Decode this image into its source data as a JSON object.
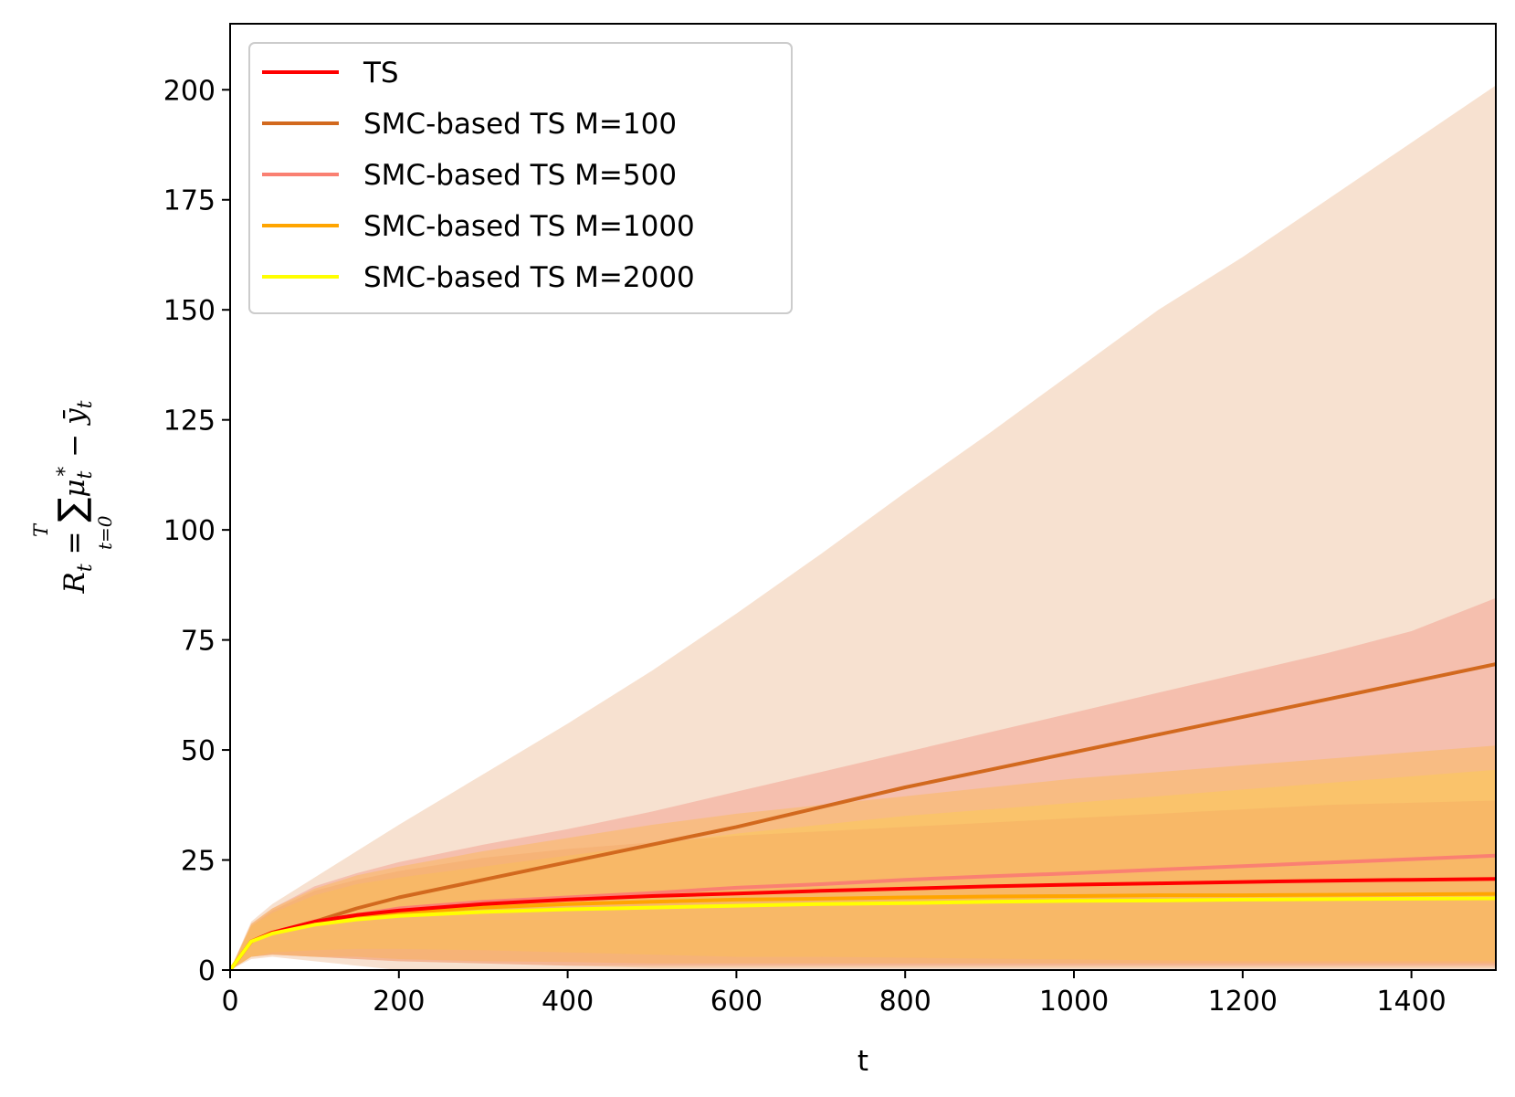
{
  "chart_data": {
    "type": "line",
    "title": "",
    "xlabel": "t",
    "ylabel": "R_t = Σ_{t=0}^{T} μ_t* − ȳ_t",
    "ylabel_parts": {
      "R": "R",
      "sub_t": "t",
      "eq": " = ",
      "sigma": "∑",
      "sup_T": "T",
      "sub_t0": "t=0",
      "mu": "μ",
      "star": "*",
      "minus": " − ",
      "y": "ȳ"
    },
    "xlim": [
      0,
      1500
    ],
    "ylim": [
      0,
      215
    ],
    "xticks": [
      0,
      200,
      400,
      600,
      800,
      1000,
      1200,
      1400
    ],
    "yticks": [
      0,
      25,
      50,
      75,
      100,
      125,
      150,
      175,
      200
    ],
    "grid": false,
    "legend_position": "top-left",
    "x": [
      0,
      25,
      50,
      100,
      150,
      200,
      300,
      400,
      500,
      600,
      700,
      800,
      900,
      1000,
      1100,
      1200,
      1300,
      1400,
      1500
    ],
    "series": [
      {
        "name": "TS",
        "color": "#ff0000",
        "values": [
          0,
          6.5,
          8.5,
          11,
          12.5,
          13.5,
          15,
          16,
          16.8,
          17.4,
          18,
          18.5,
          19,
          19.4,
          19.7,
          20,
          20.3,
          20.5,
          20.7
        ],
        "band_color": "#f4a460",
        "band_lower": [
          0,
          3,
          3.5,
          3,
          2.5,
          2,
          1.5,
          1,
          0.5,
          0.5,
          0.5,
          0.5,
          0.5,
          0.5,
          0.5,
          0.5,
          0.5,
          0.5,
          0.5
        ],
        "band_upper": [
          0,
          10,
          13.5,
          18,
          20.5,
          22.5,
          25.5,
          27.5,
          29,
          30.5,
          31.5,
          32.5,
          33.5,
          34.5,
          35.5,
          36.5,
          37.5,
          38,
          38.5
        ]
      },
      {
        "name": "SMC-based TS M=100",
        "color": "#d2691e",
        "values": [
          0,
          6.5,
          8.5,
          11,
          14,
          16.5,
          20.5,
          24.5,
          28.5,
          32.5,
          37,
          41.5,
          45.5,
          49.5,
          53.5,
          57.5,
          61.5,
          65.5,
          69.5
        ],
        "band_color": "#e8a878",
        "band_lower": [
          0,
          2.5,
          3,
          2,
          1,
          0,
          0,
          0,
          0,
          0,
          0,
          0,
          0,
          0,
          0,
          0,
          0,
          0,
          0
        ],
        "band_upper": [
          0,
          11,
          15,
          21,
          27,
          33,
          44.5,
          56,
          68,
          81,
          94.5,
          108.5,
          122,
          136,
          150,
          162,
          175,
          188,
          201
        ]
      },
      {
        "name": "SMC-based TS M=500",
        "color": "#fa8072",
        "values": [
          0,
          6.5,
          8.5,
          11,
          12.5,
          14,
          15.5,
          16.5,
          17.5,
          18.7,
          19.5,
          20.5,
          21.3,
          22,
          22.8,
          23.6,
          24.4,
          25.2,
          26
        ],
        "band_color": "#f08070",
        "band_lower": [
          0,
          3,
          3.5,
          3,
          2.5,
          2,
          1.5,
          1,
          1,
          1,
          1,
          1,
          1,
          1,
          1,
          1,
          1,
          1,
          1
        ],
        "band_upper": [
          0,
          10.5,
          14,
          19,
          22,
          24.5,
          28.5,
          32,
          36,
          40.5,
          45,
          49.5,
          54,
          58.5,
          63,
          67.5,
          72,
          77,
          84.5
        ]
      },
      {
        "name": "SMC-based TS M=1000",
        "color": "#ffa500",
        "values": [
          0,
          6.5,
          8.5,
          10.5,
          12,
          13,
          14.2,
          15,
          15.5,
          16,
          16.2,
          16.5,
          16.7,
          16.8,
          17,
          17,
          17.1,
          17.2,
          17.3
        ],
        "band_color": "#ffb733",
        "band_lower": [
          0,
          3,
          3.5,
          3,
          3,
          2.5,
          2,
          1.8,
          1.5,
          1.5,
          1.5,
          1.5,
          1.5,
          1.5,
          1.5,
          1.5,
          1.5,
          1.5,
          1.5
        ],
        "band_upper": [
          0,
          10.5,
          14,
          18.5,
          21.5,
          23.5,
          27,
          30,
          33,
          35.5,
          37.5,
          39.5,
          41.5,
          43.5,
          45,
          46.5,
          48,
          49.5,
          51
        ]
      },
      {
        "name": "SMC-based TS M=2000",
        "color": "#ffff00",
        "values": [
          0,
          6.5,
          8.3,
          10.3,
          11.5,
          12.3,
          13.2,
          13.8,
          14.2,
          14.6,
          15,
          15.2,
          15.5,
          15.7,
          15.8,
          16,
          16.1,
          16.2,
          16.3
        ],
        "band_color": "#ffd040",
        "band_lower": [
          0,
          3,
          4,
          4.5,
          4.8,
          4.8,
          4.5,
          4,
          3.5,
          3,
          3,
          2.8,
          2.6,
          2.4,
          2.2,
          2,
          2,
          2,
          2
        ],
        "band_upper": [
          0,
          10,
          13,
          17,
          19.5,
          21,
          23.5,
          26,
          28.5,
          31,
          33,
          35,
          36.5,
          38,
          39.5,
          41,
          42.5,
          44,
          45.5
        ]
      }
    ]
  }
}
